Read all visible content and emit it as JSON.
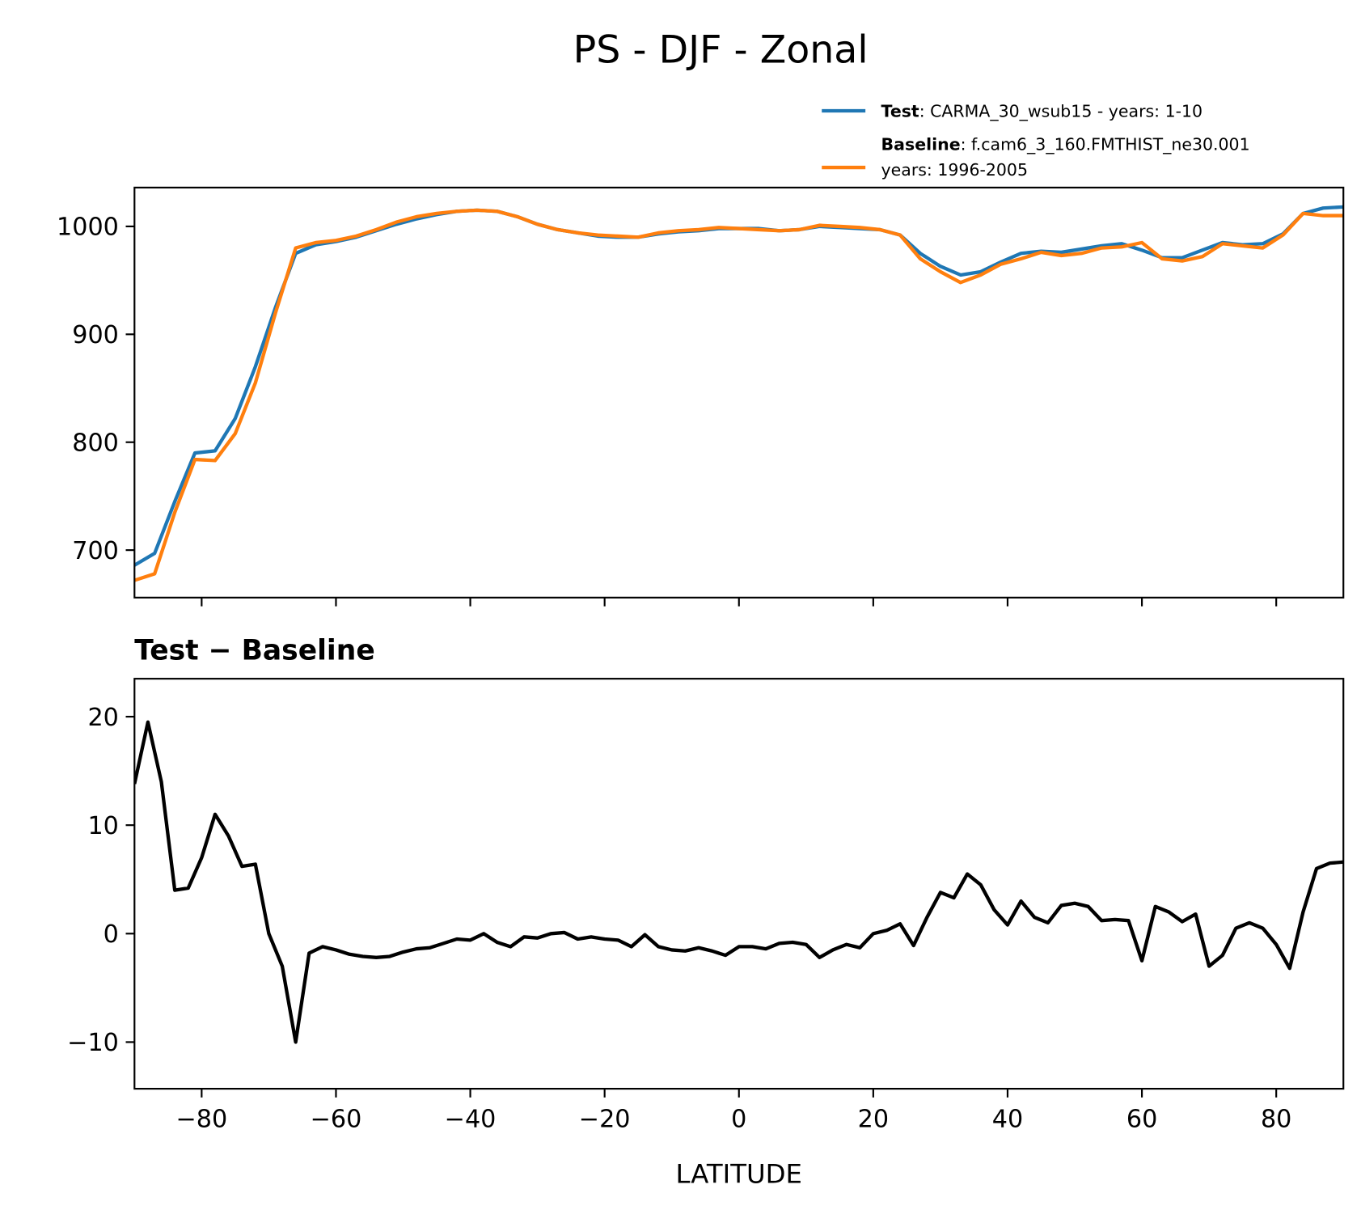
{
  "title": "PS - DJF - Zonal",
  "chart_data": [
    {
      "type": "line",
      "x": [
        -90,
        -87,
        -84,
        -81,
        -78,
        -75,
        -72,
        -69,
        -66,
        -63,
        -60,
        -57,
        -54,
        -51,
        -48,
        -45,
        -42,
        -39,
        -36,
        -33,
        -30,
        -27,
        -24,
        -21,
        -18,
        -15,
        -12,
        -9,
        -6,
        -3,
        0,
        3,
        6,
        9,
        12,
        15,
        18,
        21,
        24,
        27,
        30,
        33,
        36,
        39,
        42,
        45,
        48,
        51,
        54,
        57,
        60,
        63,
        66,
        69,
        72,
        75,
        78,
        81,
        84,
        87,
        90
      ],
      "series": [
        {
          "name": "Test",
          "description": [
            ": CARMA_30_wsub15 - years: 1-10"
          ],
          "color": "#1f77b4",
          "values": [
            686,
            697,
            745,
            790,
            792,
            822,
            870,
            925,
            975,
            983,
            986,
            990,
            996,
            1002,
            1007,
            1011,
            1014,
            1015,
            1014,
            1009,
            1002,
            997,
            994,
            991,
            990,
            990,
            993,
            995,
            996,
            998,
            998,
            998,
            996,
            997,
            1000,
            999,
            998,
            997,
            992,
            975,
            963,
            955,
            958,
            967,
            975,
            977,
            976,
            979,
            982,
            984,
            978,
            971,
            971,
            978,
            985,
            983,
            984,
            993,
            1012,
            1017,
            1018
          ]
        },
        {
          "name": "Baseline",
          "description": [
            ": f.cam6_3_160.FMTHIST_ne30.001",
            "years: 1996-2005"
          ],
          "color": "#ff7f0e",
          "values": [
            672,
            678,
            735,
            784,
            783,
            808,
            855,
            920,
            980,
            985,
            987,
            991,
            997,
            1004,
            1009,
            1012,
            1014,
            1015,
            1014,
            1009,
            1002,
            997,
            994,
            992,
            991,
            990,
            994,
            996,
            997,
            999,
            998,
            997,
            996,
            997,
            1001,
            1000,
            999,
            997,
            992,
            970,
            958,
            948,
            955,
            965,
            970,
            976,
            973,
            975,
            980,
            981,
            985,
            970,
            968,
            972,
            984,
            982,
            980,
            992,
            1012,
            1010,
            1010
          ]
        }
      ],
      "xlim": [
        -90,
        90
      ],
      "xticks": [
        -80,
        -60,
        -40,
        -20,
        0,
        20,
        40,
        60,
        80
      ],
      "ylim": [
        656,
        1036
      ],
      "yticks": [
        700,
        800,
        900,
        1000
      ],
      "legend": "upper right"
    },
    {
      "type": "line",
      "title": "Test − Baseline",
      "xlabel": "LATITUDE",
      "x": [
        -90,
        -88,
        -86,
        -84,
        -82,
        -80,
        -78,
        -76,
        -74,
        -72,
        -70,
        -68,
        -66,
        -64,
        -62,
        -60,
        -58,
        -56,
        -54,
        -52,
        -50,
        -48,
        -46,
        -44,
        -42,
        -40,
        -38,
        -36,
        -34,
        -32,
        -30,
        -28,
        -26,
        -24,
        -22,
        -20,
        -18,
        -16,
        -14,
        -12,
        -10,
        -8,
        -6,
        -4,
        -2,
        0,
        2,
        4,
        6,
        8,
        10,
        12,
        14,
        16,
        18,
        20,
        22,
        24,
        26,
        28,
        30,
        32,
        34,
        36,
        38,
        40,
        42,
        44,
        46,
        48,
        50,
        52,
        54,
        56,
        58,
        60,
        62,
        64,
        66,
        68,
        70,
        72,
        74,
        76,
        78,
        80,
        82,
        84,
        86,
        88,
        90
      ],
      "values": [
        13.8,
        19.5,
        14,
        4,
        4.2,
        7,
        11,
        9,
        6.2,
        6.4,
        0,
        -3,
        -10,
        -1.8,
        -1.2,
        -1.5,
        -1.9,
        -2.1,
        -2.2,
        -2.1,
        -1.7,
        -1.4,
        -1.3,
        -0.9,
        -0.5,
        -0.6,
        0,
        -0.8,
        -1.2,
        -0.3,
        -0.4,
        0,
        0.1,
        -0.5,
        -0.3,
        -0.5,
        -0.6,
        -1.2,
        -0.1,
        -1.2,
        -1.5,
        -1.6,
        -1.3,
        -1.6,
        -2,
        -1.2,
        -1.2,
        -1.4,
        -0.9,
        -0.8,
        -1,
        -2.2,
        -1.5,
        -1,
        -1.3,
        0,
        0.3,
        0.9,
        -1.1,
        1.5,
        3.8,
        3.3,
        5.5,
        4.5,
        2.2,
        0.8,
        3,
        1.5,
        1,
        2.6,
        2.8,
        2.5,
        1.2,
        1.3,
        1.2,
        -2.5,
        2.5,
        2,
        1.1,
        1.8,
        -3,
        -2,
        0.5,
        1,
        0.5,
        -1,
        -3.2,
        2,
        6,
        6.5,
        6.6
      ],
      "color": "#000000",
      "xlim": [
        -90,
        90
      ],
      "xticks": [
        {
          "value": -80,
          "label": "−80"
        },
        {
          "value": -60,
          "label": "−60"
        },
        {
          "value": -40,
          "label": "−40"
        },
        {
          "value": -20,
          "label": "−20"
        },
        0,
        20,
        40,
        60,
        80
      ],
      "ylim": [
        -14.3,
        23.5
      ],
      "yticks": [
        {
          "value": -10,
          "label": "−10"
        },
        0,
        10,
        20
      ]
    }
  ]
}
